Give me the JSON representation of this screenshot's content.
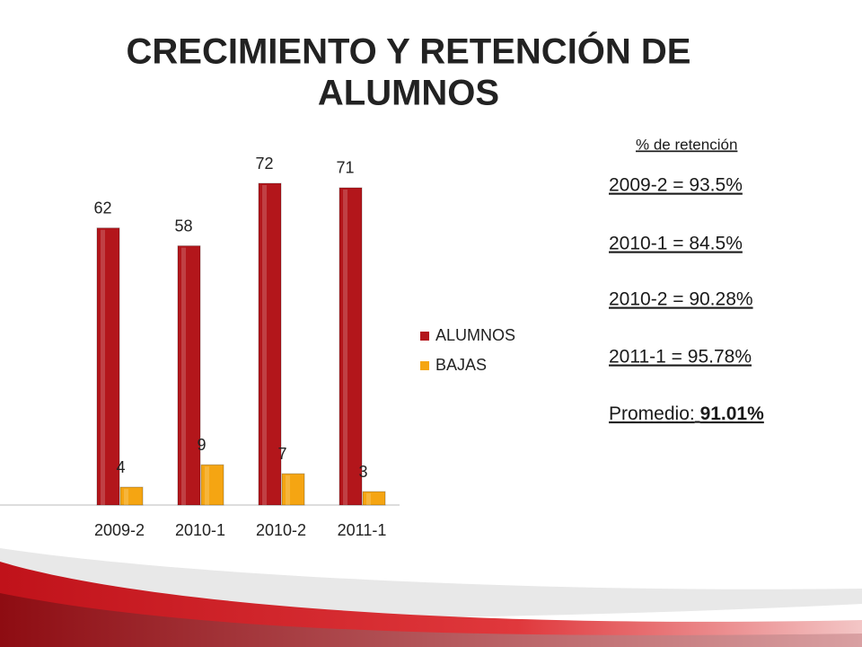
{
  "chart_data": {
    "type": "bar",
    "title": [
      "CRECIMIENTO Y RETENCIÓN DE",
      "ALUMNOS"
    ],
    "categories": [
      "2009-2",
      "2010-1",
      "2010-2",
      "2011-1"
    ],
    "series": [
      {
        "name": "ALUMNOS",
        "color": "#b3161b",
        "values": [
          62,
          58,
          72,
          71
        ]
      },
      {
        "name": "BAJAS",
        "color": "#f5a512",
        "values": [
          4,
          9,
          7,
          3
        ]
      }
    ],
    "legend": "right",
    "annotations": {
      "heading": "% de retención",
      "lines": [
        "2009-2 = 93.5%",
        "2010-1 = 84.5%",
        "2010-2 = 90.28%",
        "2011-1 = 95.78%"
      ],
      "average_label": "Promedio:",
      "average_value": "91.01%"
    }
  }
}
